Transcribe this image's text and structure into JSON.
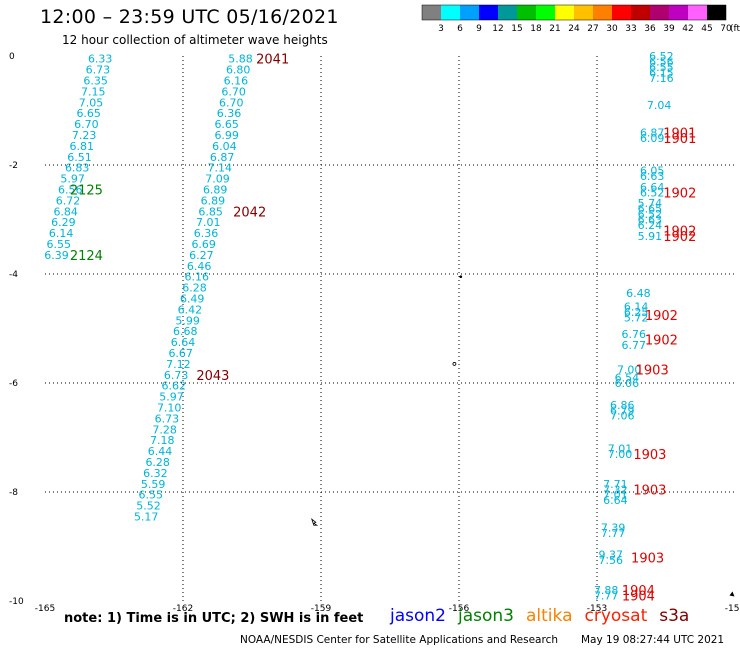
{
  "header": {
    "title": "12:00 – 23:59 UTC 05/16/2021",
    "subtitle": "12 hour collection of altimeter wave heights"
  },
  "legend": {
    "colors": [
      "#808080",
      "#00ffff",
      "#00a0ff",
      "#0000ff",
      "#009898",
      "#00c000",
      "#00ff00",
      "#ffff00",
      "#ffc000",
      "#ff8000",
      "#ff0000",
      "#c00000",
      "#b00070",
      "#c000c0",
      "#ff60ff",
      "#000000"
    ],
    "labels": [
      "3",
      "6",
      "9",
      "12",
      "15",
      "18",
      "21",
      "24",
      "27",
      "30",
      "33",
      "36",
      "39",
      "42",
      "45",
      "70"
    ],
    "unit": "(ft)"
  },
  "map": {
    "x_ticks": [
      "-165",
      "-162",
      "-159",
      "-156",
      "-153",
      "-150"
    ],
    "y_ticks": [
      "0",
      "-2",
      "-4",
      "-6",
      "-8",
      "-10"
    ],
    "grid": "dotted",
    "colors": {
      "wave": "#00b4d8",
      "jason3": "#008000",
      "s3a": "#800000",
      "cryosat": "#e00000"
    }
  },
  "chart_data": {
    "type": "scatter",
    "xlim": [
      -165,
      -150
    ],
    "ylim": [
      -10,
      0
    ],
    "wave_heights": [
      {
        "lon": -163.8,
        "lat": -0.05,
        "v": "6.33"
      },
      {
        "lon": -163.85,
        "lat": -0.25,
        "v": "6.73"
      },
      {
        "lon": -163.9,
        "lat": -0.45,
        "v": "6.35"
      },
      {
        "lon": -163.95,
        "lat": -0.65,
        "v": "7.15"
      },
      {
        "lon": -164.0,
        "lat": -0.85,
        "v": "7.05"
      },
      {
        "lon": -164.05,
        "lat": -1.05,
        "v": "6.65"
      },
      {
        "lon": -164.1,
        "lat": -1.25,
        "v": "6.70"
      },
      {
        "lon": -164.15,
        "lat": -1.45,
        "v": "7.23"
      },
      {
        "lon": -164.2,
        "lat": -1.65,
        "v": "6.81"
      },
      {
        "lon": -164.25,
        "lat": -1.85,
        "v": "6.51"
      },
      {
        "lon": -164.3,
        "lat": -2.05,
        "v": "6.83"
      },
      {
        "lon": -164.4,
        "lat": -2.25,
        "v": "5.97"
      },
      {
        "lon": -164.45,
        "lat": -2.45,
        "v": "6.56"
      },
      {
        "lon": -164.5,
        "lat": -2.65,
        "v": "6.72"
      },
      {
        "lon": -164.55,
        "lat": -2.85,
        "v": "6.84"
      },
      {
        "lon": -164.6,
        "lat": -3.05,
        "v": "6.29"
      },
      {
        "lon": -164.65,
        "lat": -3.25,
        "v": "6.14"
      },
      {
        "lon": -164.7,
        "lat": -3.45,
        "v": "6.55"
      },
      {
        "lon": -164.75,
        "lat": -3.65,
        "v": "6.39"
      },
      {
        "lon": -160.75,
        "lat": -0.05,
        "v": "5.88"
      },
      {
        "lon": -160.8,
        "lat": -0.25,
        "v": "6.80"
      },
      {
        "lon": -160.85,
        "lat": -0.45,
        "v": "6.16"
      },
      {
        "lon": -160.9,
        "lat": -0.65,
        "v": "6.70"
      },
      {
        "lon": -160.95,
        "lat": -0.85,
        "v": "6.70"
      },
      {
        "lon": -161.0,
        "lat": -1.05,
        "v": "6.36"
      },
      {
        "lon": -161.05,
        "lat": -1.25,
        "v": "6.65"
      },
      {
        "lon": -161.05,
        "lat": -1.45,
        "v": "6.99"
      },
      {
        "lon": -161.1,
        "lat": -1.65,
        "v": "6.04"
      },
      {
        "lon": -161.15,
        "lat": -1.85,
        "v": "6.87"
      },
      {
        "lon": -161.2,
        "lat": -2.05,
        "v": "7.14"
      },
      {
        "lon": -161.25,
        "lat": -2.25,
        "v": "7.09"
      },
      {
        "lon": -161.3,
        "lat": -2.45,
        "v": "6.89"
      },
      {
        "lon": -161.35,
        "lat": -2.65,
        "v": "6.89"
      },
      {
        "lon": -161.4,
        "lat": -2.85,
        "v": "6.85"
      },
      {
        "lon": -161.45,
        "lat": -3.05,
        "v": "7.01"
      },
      {
        "lon": -161.5,
        "lat": -3.25,
        "v": "6.36"
      },
      {
        "lon": -161.55,
        "lat": -3.45,
        "v": "6.69"
      },
      {
        "lon": -161.6,
        "lat": -3.65,
        "v": "6.27"
      },
      {
        "lon": -161.65,
        "lat": -3.85,
        "v": "6.46"
      },
      {
        "lon": -161.7,
        "lat": -4.05,
        "v": "6.16"
      },
      {
        "lon": -161.75,
        "lat": -4.25,
        "v": "6.28"
      },
      {
        "lon": -161.8,
        "lat": -4.45,
        "v": "6.49"
      },
      {
        "lon": -161.85,
        "lat": -4.65,
        "v": "6.42"
      },
      {
        "lon": -161.9,
        "lat": -4.85,
        "v": "5.99"
      },
      {
        "lon": -161.95,
        "lat": -5.05,
        "v": "6.68"
      },
      {
        "lon": -162.0,
        "lat": -5.25,
        "v": "6.64"
      },
      {
        "lon": -162.05,
        "lat": -5.45,
        "v": "6.67"
      },
      {
        "lon": -162.1,
        "lat": -5.65,
        "v": "7.12"
      },
      {
        "lon": -162.15,
        "lat": -5.85,
        "v": "6.73"
      },
      {
        "lon": -162.2,
        "lat": -6.05,
        "v": "6.62"
      },
      {
        "lon": -162.25,
        "lat": -6.25,
        "v": "5.97"
      },
      {
        "lon": -162.3,
        "lat": -6.45,
        "v": "7.10"
      },
      {
        "lon": -162.35,
        "lat": -6.65,
        "v": "6.73"
      },
      {
        "lon": -162.4,
        "lat": -6.85,
        "v": "7.28"
      },
      {
        "lon": -162.45,
        "lat": -7.05,
        "v": "7.18"
      },
      {
        "lon": -162.5,
        "lat": -7.25,
        "v": "6.44"
      },
      {
        "lon": -162.55,
        "lat": -7.45,
        "v": "6.28"
      },
      {
        "lon": -162.6,
        "lat": -7.65,
        "v": "6.32"
      },
      {
        "lon": -162.65,
        "lat": -7.85,
        "v": "5.59"
      },
      {
        "lon": -162.7,
        "lat": -8.05,
        "v": "6.55"
      },
      {
        "lon": -162.75,
        "lat": -8.25,
        "v": "5.52"
      },
      {
        "lon": -162.8,
        "lat": -8.45,
        "v": "5.17"
      },
      {
        "lon": -151.6,
        "lat": -0.0,
        "v": "6.52"
      },
      {
        "lon": -151.6,
        "lat": -0.1,
        "v": "6.56"
      },
      {
        "lon": -151.6,
        "lat": -0.2,
        "v": "6.55"
      },
      {
        "lon": -151.6,
        "lat": -0.3,
        "v": "6.15"
      },
      {
        "lon": -151.6,
        "lat": -0.4,
        "v": "7.16"
      },
      {
        "lon": -151.65,
        "lat": -0.9,
        "v": "7.04"
      },
      {
        "lon": -151.8,
        "lat": -1.4,
        "v": "6.87"
      },
      {
        "lon": -151.8,
        "lat": -1.5,
        "v": "6.09"
      },
      {
        "lon": -151.8,
        "lat": -2.1,
        "v": "6.05"
      },
      {
        "lon": -151.8,
        "lat": -2.2,
        "v": "6.63"
      },
      {
        "lon": -151.8,
        "lat": -2.4,
        "v": "6.64"
      },
      {
        "lon": -151.8,
        "lat": -2.5,
        "v": "6.52"
      },
      {
        "lon": -151.85,
        "lat": -2.7,
        "v": "5.74"
      },
      {
        "lon": -151.85,
        "lat": -2.8,
        "v": "6.65"
      },
      {
        "lon": -151.85,
        "lat": -2.9,
        "v": "6.52"
      },
      {
        "lon": -151.85,
        "lat": -3.0,
        "v": "6.63"
      },
      {
        "lon": -151.85,
        "lat": -3.1,
        "v": "6.24"
      },
      {
        "lon": -151.85,
        "lat": -3.3,
        "v": "5.91"
      },
      {
        "lon": -152.1,
        "lat": -4.35,
        "v": "6.48"
      },
      {
        "lon": -152.15,
        "lat": -4.6,
        "v": "6.14"
      },
      {
        "lon": -152.15,
        "lat": -4.7,
        "v": "6.25"
      },
      {
        "lon": -152.15,
        "lat": -4.8,
        "v": "5.72"
      },
      {
        "lon": -152.2,
        "lat": -5.1,
        "v": "6.76"
      },
      {
        "lon": -152.2,
        "lat": -5.3,
        "v": "6.77"
      },
      {
        "lon": -152.3,
        "lat": -5.75,
        "v": "7.00"
      },
      {
        "lon": -152.35,
        "lat": -5.9,
        "v": "6.54"
      },
      {
        "lon": -152.35,
        "lat": -6.0,
        "v": "6.06"
      },
      {
        "lon": -152.45,
        "lat": -6.4,
        "v": "6.86"
      },
      {
        "lon": -152.45,
        "lat": -6.5,
        "v": "6.79"
      },
      {
        "lon": -152.45,
        "lat": -6.6,
        "v": "7.06"
      },
      {
        "lon": -152.5,
        "lat": -7.2,
        "v": "7.01"
      },
      {
        "lon": -152.5,
        "lat": -7.3,
        "v": "7.00"
      },
      {
        "lon": -152.6,
        "lat": -7.85,
        "v": "7.71"
      },
      {
        "lon": -152.6,
        "lat": -7.95,
        "v": "7.32"
      },
      {
        "lon": -152.6,
        "lat": -8.05,
        "v": "7.01"
      },
      {
        "lon": -152.6,
        "lat": -8.15,
        "v": "6.64"
      },
      {
        "lon": -152.65,
        "lat": -8.65,
        "v": "7.39"
      },
      {
        "lon": -152.65,
        "lat": -8.75,
        "v": "7.77"
      },
      {
        "lon": -152.7,
        "lat": -9.15,
        "v": "9.37"
      },
      {
        "lon": -152.7,
        "lat": -9.25,
        "v": "7.56"
      },
      {
        "lon": -152.8,
        "lat": -9.8,
        "v": "7.88"
      },
      {
        "lon": -152.8,
        "lat": -9.9,
        "v": "7.77"
      }
    ],
    "pass_times": [
      {
        "lon": -164.1,
        "lat": -2.45,
        "t": "2125",
        "sat": "jason3"
      },
      {
        "lon": -164.1,
        "lat": -3.65,
        "t": "2124",
        "sat": "jason3"
      },
      {
        "lon": -160.05,
        "lat": -0.05,
        "t": "2041",
        "sat": "s3a"
      },
      {
        "lon": -160.55,
        "lat": -2.85,
        "t": "2042",
        "sat": "s3a"
      },
      {
        "lon": -161.35,
        "lat": -5.85,
        "t": "2043",
        "sat": "s3a"
      },
      {
        "lon": -151.2,
        "lat": -1.4,
        "t": "1901",
        "sat": "cryosat"
      },
      {
        "lon": -151.2,
        "lat": -1.5,
        "t": "1901",
        "sat": "cryosat"
      },
      {
        "lon": -151.2,
        "lat": -2.5,
        "t": "1902",
        "sat": "cryosat"
      },
      {
        "lon": -151.2,
        "lat": -3.2,
        "t": "1902",
        "sat": "cryosat"
      },
      {
        "lon": -151.2,
        "lat": -3.3,
        "t": "1902",
        "sat": "cryosat"
      },
      {
        "lon": -151.6,
        "lat": -4.75,
        "t": "1902",
        "sat": "cryosat"
      },
      {
        "lon": -151.6,
        "lat": -5.2,
        "t": "1902",
        "sat": "cryosat"
      },
      {
        "lon": -151.8,
        "lat": -5.75,
        "t": "1903",
        "sat": "cryosat"
      },
      {
        "lon": -151.85,
        "lat": -7.3,
        "t": "1903",
        "sat": "cryosat"
      },
      {
        "lon": -151.85,
        "lat": -7.95,
        "t": "1903",
        "sat": "cryosat"
      },
      {
        "lon": -151.9,
        "lat": -9.2,
        "t": "1903",
        "sat": "cryosat"
      },
      {
        "lon": -152.1,
        "lat": -9.8,
        "t": "1904",
        "sat": "cryosat"
      },
      {
        "lon": -152.1,
        "lat": -9.9,
        "t": "1904",
        "sat": "cryosat"
      }
    ]
  },
  "footer": {
    "note": "note:  1) Time is in UTC; 2) SWH is in feet",
    "satellites": [
      {
        "name": "jason2",
        "color": "#0000ff"
      },
      {
        "name": "jason3",
        "color": "#008000"
      },
      {
        "name": "altika",
        "color": "#ff8000"
      },
      {
        "name": "cryosat",
        "color": "#ff2000"
      },
      {
        "name": "s3a",
        "color": "#800000"
      }
    ],
    "credit": "NOAA/NESDIS Center for Satellite Applications and Research",
    "timestamp": "May 19 08:27:44 UTC 2021"
  }
}
